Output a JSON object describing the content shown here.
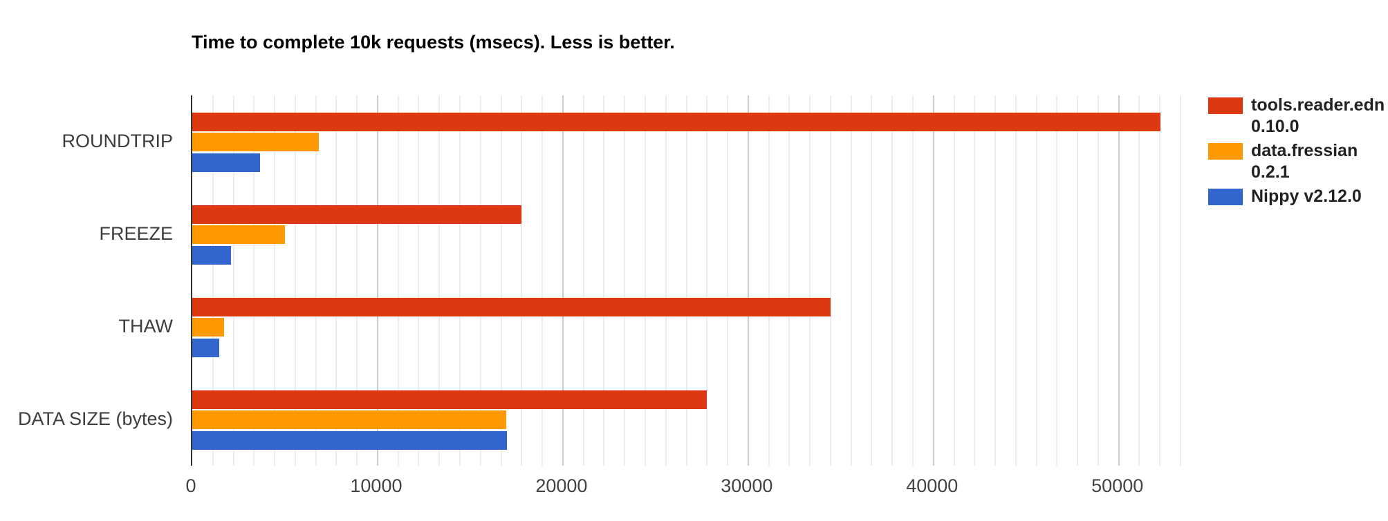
{
  "chart_data": {
    "type": "bar",
    "orientation": "horizontal",
    "title": "Time to complete 10k requests (msecs). Less is better.",
    "categories": [
      "ROUNDTRIP",
      "FREEZE",
      "THAW",
      "DATA SIZE (bytes)"
    ],
    "series": [
      {
        "name": "tools.reader.edn 0.10.0",
        "label_lines": [
          "tools.reader.edn",
          "0.10.0"
        ],
        "color": "#DC3912",
        "values": [
          52300,
          17800,
          34500,
          27800
        ]
      },
      {
        "name": "data.fressian 0.2.1",
        "label_lines": [
          "data.fressian",
          "0.2.1"
        ],
        "color": "#FF9900",
        "values": [
          6870,
          5050,
          1750,
          17000
        ]
      },
      {
        "name": "Nippy v2.12.0",
        "label_lines": [
          "Nippy v2.12.0"
        ],
        "color": "#3366CC",
        "values": [
          3690,
          2130,
          1490,
          17010
        ]
      }
    ],
    "x_axis": {
      "ticks": [
        0,
        10000,
        20000,
        30000,
        40000,
        50000
      ],
      "tick_labels": [
        "0",
        "10000",
        "20000",
        "30000",
        "40000",
        "50000"
      ],
      "min": 0,
      "max": 53333,
      "minor_interval": 1111.11
    },
    "ylabel": "",
    "xlabel": "",
    "legend_position": "right",
    "grid": true,
    "colors": {
      "axis_line": "#333333",
      "major_grid": "#cccccc",
      "minor_grid": "#ededed",
      "tick_text": "#424242",
      "category_text": "#3d3d3d",
      "legend_text": "#222222",
      "title_text": "#000000",
      "background": "#ffffff"
    }
  }
}
